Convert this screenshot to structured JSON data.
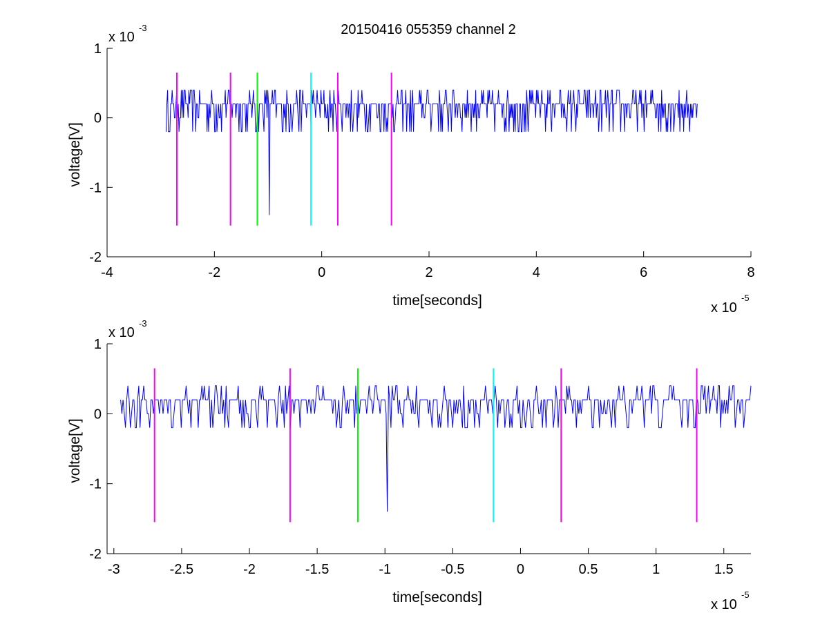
{
  "figure": {
    "title": "20150416 055359 channel 2"
  },
  "chart_data": [
    {
      "type": "line",
      "xlabel": "time[seconds]",
      "ylabel": "voltage[V]",
      "x_exponent": "x 10",
      "x_exponent_power": "-5",
      "y_exponent": "x 10",
      "y_exponent_power": "-3",
      "xlim": [
        -4,
        8
      ],
      "ylim": [
        -2,
        1
      ],
      "xticks": [
        "-4",
        "-2",
        "0",
        "2",
        "4",
        "6",
        "8"
      ],
      "xtick_values": [
        -4,
        -2,
        0,
        2,
        4,
        6,
        8
      ],
      "yticks": [
        "-2",
        "-1",
        "0",
        "1"
      ],
      "ytick_values": [
        -2,
        -1,
        0,
        1
      ],
      "grid": false,
      "box": false,
      "series": [
        {
          "color": "#0000ff",
          "x_range": [
            -2.9,
            7.0
          ],
          "values_note_mv": [
            -0.4,
            0.4
          ],
          "dip_at": -0.98,
          "dip_value": -1.4
        }
      ],
      "markers": [
        {
          "x": -2.7,
          "color": "#ff00ff"
        },
        {
          "x": -1.7,
          "color": "#ff00ff"
        },
        {
          "x": -1.2,
          "color": "#00ff00"
        },
        {
          "x": -0.2,
          "color": "#00ffff"
        },
        {
          "x": 0.3,
          "color": "#ff00ff"
        },
        {
          "x": 1.3,
          "color": "#ff00ff"
        }
      ],
      "marker_range": [
        -1.55,
        0.65
      ]
    },
    {
      "type": "line",
      "xlabel": "time[seconds]",
      "ylabel": "voltage[V]",
      "x_exponent": "x 10",
      "x_exponent_power": "-5",
      "y_exponent": "x 10",
      "y_exponent_power": "-3",
      "xlim": [
        -3.05,
        1.7
      ],
      "ylim": [
        -2,
        1
      ],
      "xticks": [
        "-3",
        "-2.5",
        "-2",
        "-1.5",
        "-1",
        "-0.5",
        "0",
        "0.5",
        "1",
        "1.5"
      ],
      "xtick_values": [
        -3,
        -2.5,
        -2,
        -1.5,
        -1,
        -0.5,
        0,
        0.5,
        1,
        1.5
      ],
      "yticks": [
        "-2",
        "-1",
        "0",
        "1"
      ],
      "ytick_values": [
        -2,
        -1,
        0,
        1
      ],
      "grid": false,
      "box": false,
      "series": [
        {
          "color": "#0000ff",
          "x_range": [
            -2.95,
            1.7
          ],
          "dip_at": -0.98,
          "dip_value": -1.4
        }
      ],
      "markers": [
        {
          "x": -2.7,
          "color": "#ff00ff"
        },
        {
          "x": -1.7,
          "color": "#ff00ff"
        },
        {
          "x": -1.2,
          "color": "#00ff00"
        },
        {
          "x": -0.2,
          "color": "#00ffff"
        },
        {
          "x": 0.3,
          "color": "#ff00ff"
        },
        {
          "x": 1.3,
          "color": "#ff00ff"
        }
      ],
      "marker_range": [
        -1.55,
        0.65
      ]
    }
  ]
}
